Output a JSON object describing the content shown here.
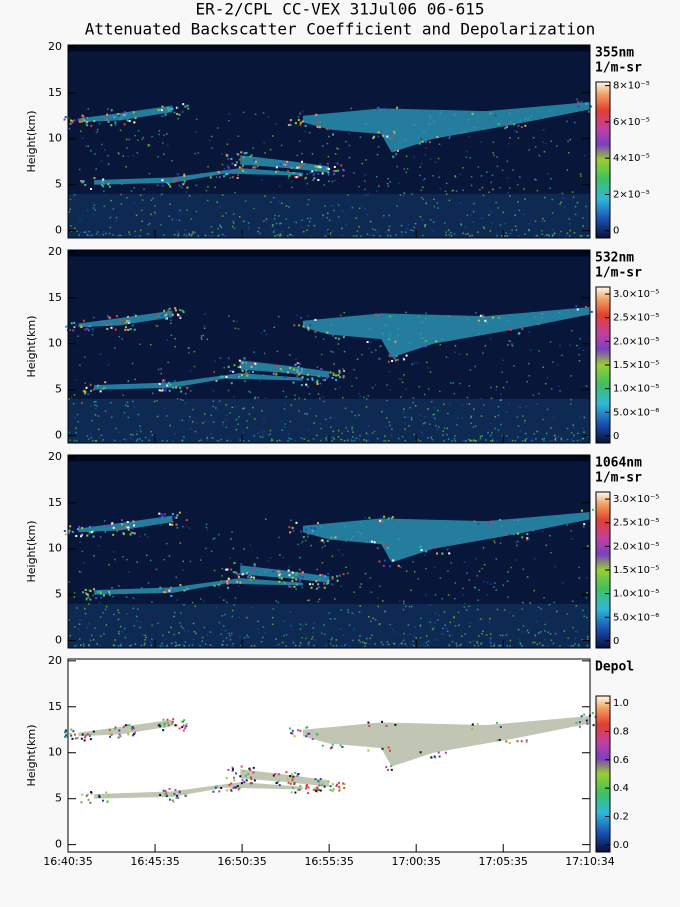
{
  "title": "ER-2/CPL CC-VEX 31Jul06 06-615",
  "subtitle": "Attenuated Backscatter Coefficient and Depolarization",
  "chart_data": [
    {
      "type": "heatmap",
      "ylabel": "Height(km)",
      "ylim": [
        -0.8,
        20.2
      ],
      "yticks": [
        0,
        5,
        10,
        15,
        20
      ],
      "xlim": [
        60035,
        61834
      ],
      "colorbar_title": "355nm",
      "colorbar_unit": "1/m-sr",
      "clim": [
        -4e-06,
        8.2e-05
      ],
      "cticks": [
        0,
        {
          "value": 2e-05,
          "label": "2×10⁻⁵"
        },
        {
          "value": 4e-05,
          "label": "4×10⁻⁵"
        },
        {
          "value": 6e-05,
          "label": "6×10⁻⁵"
        },
        {
          "value": 8e-05,
          "label": "8×10⁻⁵"
        }
      ]
    },
    {
      "type": "heatmap",
      "ylabel": "Height(km)",
      "ylim": [
        -0.8,
        20.2
      ],
      "yticks": [
        0,
        5,
        10,
        15,
        20
      ],
      "xlim": [
        60035,
        61834
      ],
      "colorbar_title": "532nm",
      "colorbar_unit": "1/m-sr",
      "clim": [
        -1.5e-06,
        3.15e-05
      ],
      "cticks": [
        0,
        {
          "value": 5e-06,
          "label": "5.0×10⁻⁶"
        },
        {
          "value": 1e-05,
          "label": "1.0×10⁻⁵"
        },
        {
          "value": 1.5e-05,
          "label": "1.5×10⁻⁵"
        },
        {
          "value": 2e-05,
          "label": "2.0×10⁻⁵"
        },
        {
          "value": 2.5e-05,
          "label": "2.5×10⁻⁵"
        },
        {
          "value": 3e-05,
          "label": "3.0×10⁻⁵"
        }
      ]
    },
    {
      "type": "heatmap",
      "ylabel": "Height(km)",
      "ylim": [
        -0.8,
        20.2
      ],
      "yticks": [
        0,
        5,
        10,
        15,
        20
      ],
      "xlim": [
        60035,
        61834
      ],
      "colorbar_title": "1064nm",
      "colorbar_unit": "1/m-sr",
      "clim": [
        -1.5e-06,
        3.15e-05
      ],
      "cticks": [
        0,
        {
          "value": 5e-06,
          "label": "5.0×10⁻⁶"
        },
        {
          "value": 1e-05,
          "label": "1.0×10⁻⁵"
        },
        {
          "value": 1.5e-05,
          "label": "1.5×10⁻⁵"
        },
        {
          "value": 2e-05,
          "label": "2.0×10⁻⁵"
        },
        {
          "value": 2.5e-05,
          "label": "2.5×10⁻⁵"
        },
        {
          "value": 3e-05,
          "label": "3.0×10⁻⁵"
        }
      ]
    },
    {
      "type": "depol",
      "ylabel": "Height(km)",
      "ylim": [
        -0.8,
        20.2
      ],
      "yticks": [
        0,
        5,
        10,
        15,
        20
      ],
      "xlim": [
        60035,
        61834
      ],
      "colorbar_title": "Depol",
      "clim": [
        -0.05,
        1.05
      ],
      "cticks": [
        {
          "value": 0,
          "label": "0.0"
        },
        {
          "value": 0.2,
          "label": "0.2"
        },
        {
          "value": 0.4,
          "label": "0.4"
        },
        {
          "value": 0.6,
          "label": "0.6"
        },
        {
          "value": 0.8,
          "label": "0.8"
        },
        {
          "value": 1,
          "label": "1.0"
        }
      ],
      "xticks": [
        {
          "value": 60035,
          "label": "16:40:35"
        },
        {
          "value": 60335,
          "label": "16:45:35"
        },
        {
          "value": 60635,
          "label": "16:50:35"
        },
        {
          "value": 60935,
          "label": "16:55:35"
        },
        {
          "value": 61235,
          "label": "17:00:35"
        },
        {
          "value": 61535,
          "label": "17:05:35"
        },
        {
          "value": 61834,
          "label": "17:10:34"
        }
      ]
    }
  ]
}
